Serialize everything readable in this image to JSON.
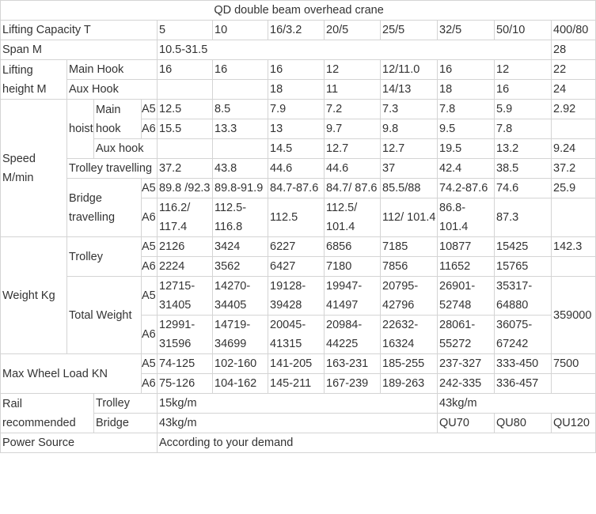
{
  "title": "QD double beam overhead crane",
  "capacity": {
    "label": "Lifting Capacity   T",
    "values": [
      "5",
      "10",
      "16/3.2",
      "20/5",
      "25/5",
      "32/5",
      "50/10",
      "400/80"
    ]
  },
  "span": {
    "label": "Span  M",
    "range": "10.5-31.5",
    "large": "28"
  },
  "lifting_height": {
    "label": "Lifting height M",
    "main_hook": {
      "label": "Main Hook",
      "values": [
        "16",
        "16",
        "16",
        "12",
        "12/11.0",
        "16",
        "12",
        "22"
      ]
    },
    "aux_hook": {
      "label": "Aux Hook",
      "values": [
        "",
        "",
        "18",
        "11",
        "14/13",
        "18",
        "16",
        "24"
      ]
    }
  },
  "speed": {
    "label": "Speed M/min",
    "hoist": {
      "label": "hoist",
      "main_hook": {
        "label": "Main hook",
        "a5": {
          "grade": "A5",
          "values": [
            "12.5",
            "8.5",
            "7.9",
            "7.2",
            "7.3",
            "7.8",
            "5.9",
            "2.92"
          ]
        },
        "a6": {
          "grade": "A6",
          "values": [
            "15.5",
            "13.3",
            "13",
            "9.7",
            "9.8",
            "9.5",
            "7.8",
            ""
          ]
        }
      },
      "aux_hook": {
        "label": "Aux hook",
        "values": [
          "",
          "",
          "14.5",
          "12.7",
          "12.7",
          "19.5",
          "13.2",
          "9.24"
        ]
      }
    },
    "trolley": {
      "label": "Trolley travelling",
      "values": [
        "37.2",
        "43.8",
        "44.6",
        "44.6",
        "37",
        "42.4",
        "38.5",
        "37.2"
      ]
    },
    "bridge": {
      "label": "Bridge travelling",
      "a5": {
        "grade": "A5",
        "values": [
          "89.8 /92.3",
          "89.8-91.9",
          "84.7-87.6",
          "84.7/ 87.6",
          "85.5/88",
          "74.2-87.6",
          "74.6",
          "25.9"
        ]
      },
      "a6": {
        "grade": "A6",
        "values": [
          "116.2/ 117.4",
          "112.5- 116.8",
          "112.5",
          "112.5/ 101.4",
          "112/ 101.4",
          "86.8- 101.4",
          "87.3",
          ""
        ]
      }
    }
  },
  "weight": {
    "label": "Weight  Kg",
    "trolley": {
      "label": "Trolley",
      "a5": {
        "grade": "A5",
        "values": [
          "2126",
          "3424",
          "6227",
          "6856",
          "7185",
          "10877",
          "15425",
          "142.3"
        ]
      },
      "a6": {
        "grade": "A6",
        "values": [
          "2224",
          "3562",
          "6427",
          "7180",
          "7856",
          "11652",
          "15765",
          ""
        ]
      }
    },
    "total": {
      "label": "Total Weight",
      "a5": {
        "grade": "A5",
        "values": [
          "12715- 31405",
          "14270- 34405",
          "19128- 39428",
          "19947- 41497",
          "20795- 42796",
          "26901- 52748",
          "35317- 64880"
        ]
      },
      "a6": {
        "grade": "A6",
        "values": [
          "12991- 31596",
          "14719- 34699",
          "20045- 41315",
          "20984- 44225",
          "22632- 16324",
          "28061- 55272",
          "36075- 67242"
        ]
      },
      "large": "359000"
    }
  },
  "wheel_load": {
    "label": "Max Wheel Load KN",
    "a5": {
      "grade": "A5",
      "values": [
        "74-125",
        "102-160",
        "141-205",
        "163-231",
        "185-255",
        "237-327",
        "333-450",
        "7500"
      ]
    },
    "a6": {
      "grade": "A6",
      "values": [
        "75-126",
        "104-162",
        "145-211",
        "167-239",
        "189-263",
        "242-335",
        "336-457",
        ""
      ]
    }
  },
  "rail": {
    "label": "Rail recommended",
    "trolley": {
      "label": "Trolley",
      "small": "15kg/m",
      "large": "43kg/m"
    },
    "bridge": {
      "label": "Bridge",
      "small": "43kg/m",
      "values": [
        "QU70",
        "QU80",
        "QU120"
      ]
    }
  },
  "power": {
    "label": "Power Source",
    "value": "According to your demand"
  }
}
